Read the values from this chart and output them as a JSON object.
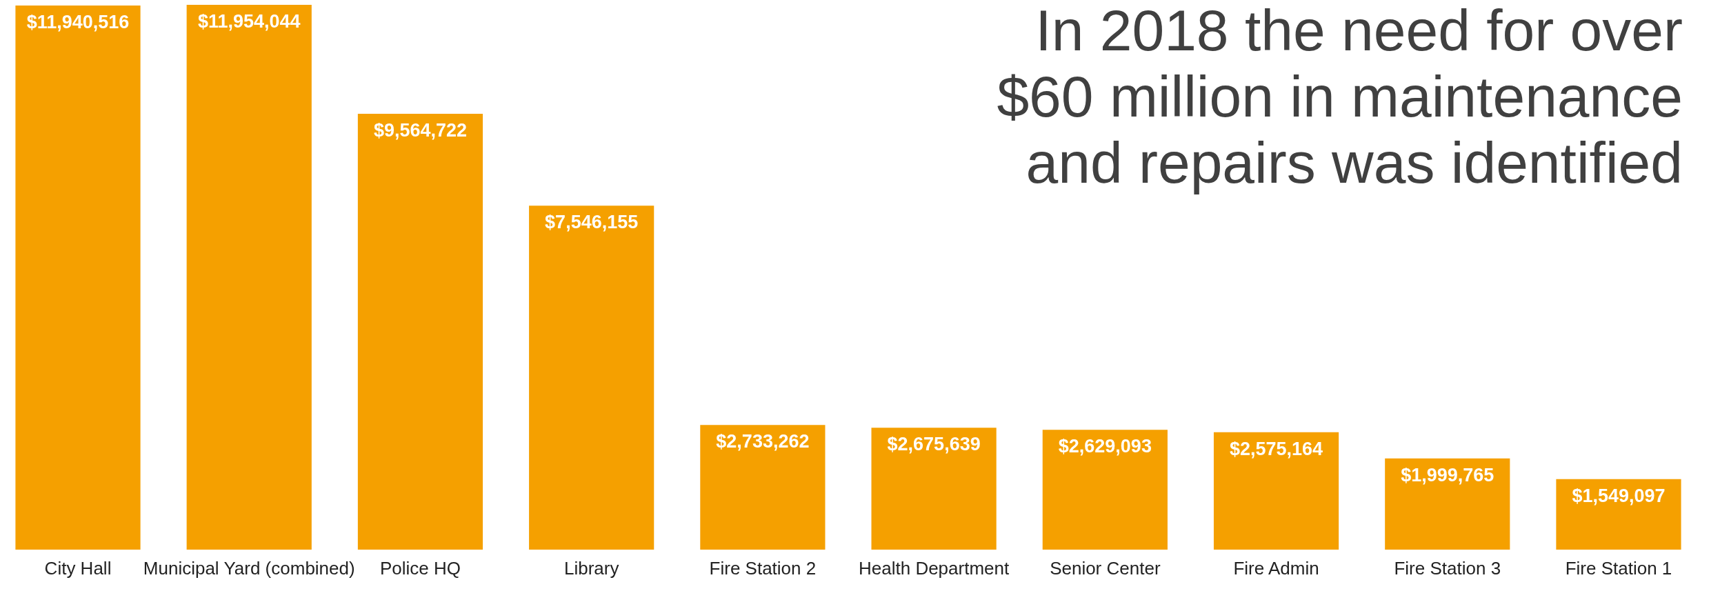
{
  "chart_data": {
    "type": "bar",
    "title": "In 2018 the need for over $60 million in maintenance and repairs was identified",
    "categories": [
      "City Hall",
      "Municipal Yard (combined)",
      "Police HQ",
      "Library",
      "Fire Station 2",
      "Health Department",
      "Senior Center",
      "Fire Admin",
      "Fire Station 3",
      "Fire Station 1"
    ],
    "values": [
      11940516,
      11954044,
      9564722,
      7546155,
      2733262,
      2675639,
      2629093,
      2575164,
      1999765,
      1549097
    ],
    "value_labels": [
      "$11,940,516",
      "$11,954,044",
      "$9,564,722",
      "$7,546,155",
      "$2,733,262",
      "$2,675,639",
      "$2,629,093",
      "$2,575,164",
      "$1,999,765",
      "$1,549,097"
    ],
    "color": "#f5a000"
  }
}
